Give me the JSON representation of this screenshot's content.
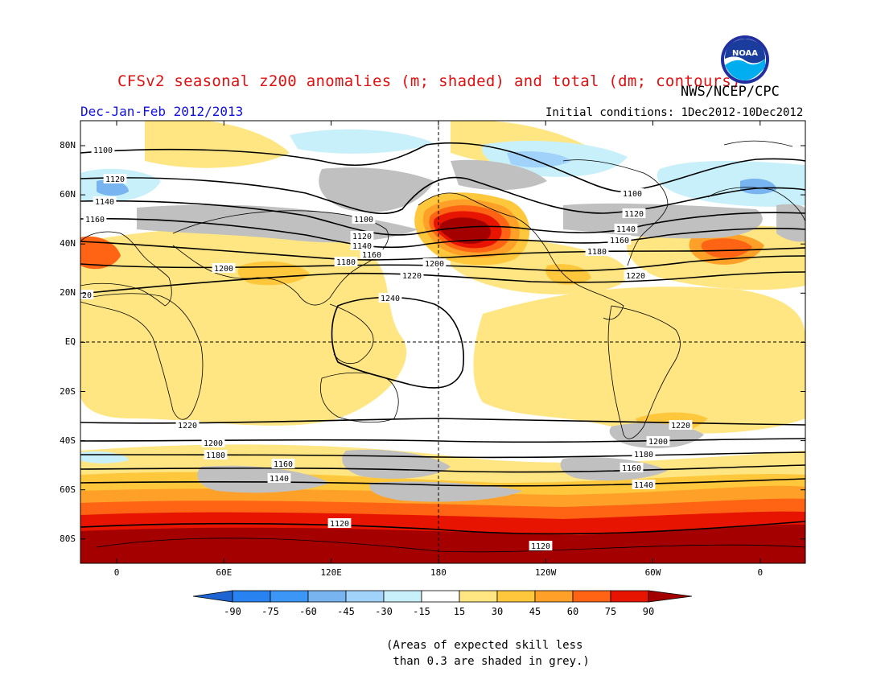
{
  "title": "CFSv2 seasonal z200 anomalies (m; shaded) and total (dm; contours)",
  "agency": "NWS/NCEP/CPC",
  "season": "Dec-Jan-Feb 2012/2013",
  "initial_conditions": "Initial conditions: 1Dec2012-10Dec2012",
  "logo_text": "NOAA",
  "note": "(Areas of expected skill less\n than 0.3 are shaded in grey.)",
  "lat_labels": [
    "80N",
    "60N",
    "40N",
    "20N",
    "EQ",
    "20S",
    "40S",
    "60S",
    "80S"
  ],
  "lon_labels": [
    "0",
    "60E",
    "120E",
    "180",
    "120W",
    "60W",
    "0"
  ],
  "colorbar": {
    "labels": [
      "-90",
      "-75",
      "-60",
      "-45",
      "-30",
      "-15",
      "15",
      "30",
      "45",
      "60",
      "75",
      "90"
    ],
    "colors": [
      "#1e64d2",
      "#2882f0",
      "#3c96f5",
      "#78b4f0",
      "#a0d2fa",
      "#c8f0fa",
      "#ffffff",
      "#ffe682",
      "#ffc83c",
      "#ffa028",
      "#ff6414",
      "#e61400",
      "#a50000"
    ]
  },
  "skill_grey": "#c0c0c0",
  "contour_labels": {
    "north": [
      "1100",
      "1120",
      "1140",
      "1160",
      "1180",
      "1200",
      "1220",
      "1240",
      "1100",
      "1120",
      "1140",
      "1160",
      "1180",
      "1200",
      "1220",
      "20",
      "1100",
      "1120",
      "1140",
      "1160"
    ],
    "south": [
      "1220",
      "1200",
      "1180",
      "1160",
      "1140",
      "1120",
      "1220",
      "1200",
      "1180",
      "1160",
      "1140",
      "1120"
    ]
  }
}
